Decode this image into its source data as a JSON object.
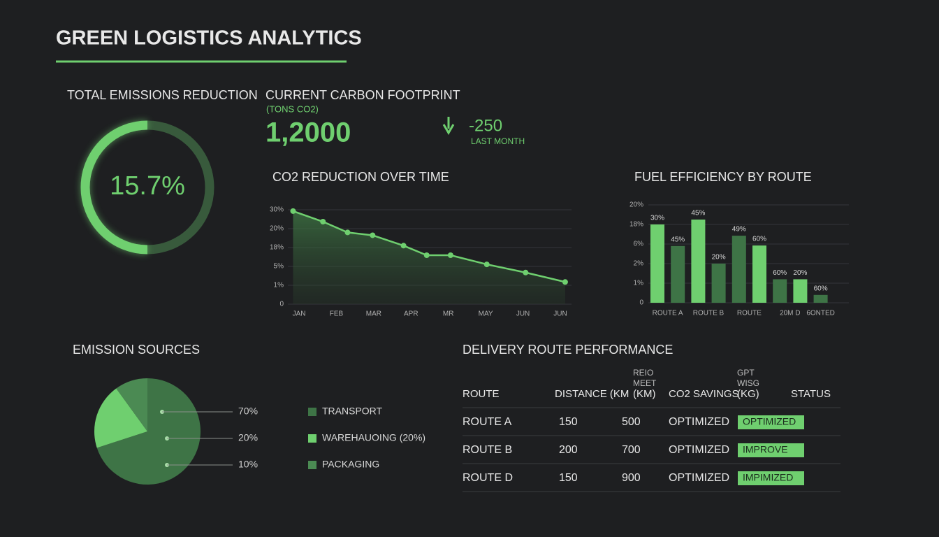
{
  "header": {
    "title": "GREEN LOGISTICS ANALYTICS"
  },
  "kpis": {
    "emissions_reduction": {
      "label": "TOTAL EMISSIONS REDUCTION",
      "value": "15.7%"
    },
    "carbon_footprint": {
      "label": "CURRENT CARBON FOOTPRINT",
      "unit": "(TONS CO2)",
      "value": "1,2000",
      "change": "-250",
      "change_label": "LAST MONTH"
    }
  },
  "chart_data": [
    {
      "type": "line",
      "title": "CO2 REDUCTION OVER TIME",
      "x": [
        -0.16,
        0.64,
        1.3,
        1.97,
        2.8,
        3.42,
        4.06,
        5.03,
        6.07,
        7.13
      ],
      "series": [
        {
          "color": "#6fcf6f",
          "values": [
            29.3,
            23.7,
            19.6,
            19.3,
            18.2,
            12.7,
            12.7,
            6.4,
            3.7,
            1.7
          ]
        }
      ],
      "xlim": [
        -0.3,
        7.3
      ],
      "xticks": [
        {
          "value": 0,
          "label": "JAN"
        },
        {
          "value": 1,
          "label": "FEB"
        },
        {
          "value": 2,
          "label": "MAR"
        },
        {
          "value": 3,
          "label": "APR"
        },
        {
          "value": 4,
          "label": "MR"
        },
        {
          "value": 5,
          "label": "MAY"
        },
        {
          "value": 6,
          "label": "JUN"
        },
        {
          "value": 7,
          "label": "JUN"
        }
      ],
      "ylim": [
        0,
        30
      ],
      "yticks": [
        0,
        {
          "value": 1,
          "label": "1%"
        },
        {
          "value": 5,
          "label": "5%"
        },
        {
          "value": 18,
          "label": "18%"
        },
        {
          "value": 20,
          "label": "20%"
        },
        {
          "value": 30,
          "label": "30%"
        }
      ],
      "grid": true
    },
    {
      "type": "bar",
      "title": "FUEL EFFICIENCY BY ROUTE",
      "values": [
        18,
        5.6,
        18.5,
        2,
        11.1,
        5.7,
        1.2,
        1.2,
        0.4
      ],
      "colors": [
        "#6fcf6f",
        "#3e7446",
        "#6fcf6f",
        "#3e7446",
        "#3e7446",
        "#6fcf6f",
        "#3e7446",
        "#6fcf6f",
        "#3e7446"
      ],
      "annotations": [
        "30%",
        "45%",
        "45%",
        "20%",
        "49%",
        "60%",
        "60%",
        "20%",
        "60%"
      ],
      "group_labels": [
        "ROUTE A",
        "ROUTE B",
        "ROUTE",
        "20M D",
        "6ONTED"
      ],
      "ylim": [
        0,
        20
      ],
      "yticks": [
        0,
        {
          "value": 1,
          "label": "1%"
        },
        {
          "value": 2,
          "label": "2%"
        },
        {
          "value": 6,
          "label": "6%"
        },
        {
          "value": 18,
          "label": "18%"
        },
        {
          "value": 20,
          "label": "20%"
        }
      ],
      "grid": true
    },
    {
      "type": "pie",
      "title": "EMISSION SOURCES",
      "categories": [
        "TRANSPORT",
        "WAREHAUOING (20%)",
        "PACKAGING"
      ],
      "values": [
        70,
        20,
        10
      ],
      "value_labels": [
        "70%",
        "20%",
        "10%"
      ],
      "colors": [
        "#3e7446",
        "#6fcf6f",
        "#4b8a53"
      ]
    }
  ],
  "table": {
    "title": "DELIVERY ROUTE PERFORMANCE",
    "columns": [
      [
        "ROUTE"
      ],
      [
        "DISTANCE (KM"
      ],
      [
        "REIO",
        "MEET",
        "(KM)"
      ],
      [
        "CO2 SAVINGS"
      ],
      [
        "GPT",
        "WISG",
        "(KG)"
      ],
      [
        "STATUS"
      ]
    ],
    "rows": [
      [
        "ROUTE A",
        "150",
        "500",
        "OPTIMIZED",
        "OPTIMIZED"
      ],
      [
        "ROUTE B",
        "200",
        "700",
        "OPTIMIZED",
        "IMPROVE"
      ],
      [
        "ROUTE D",
        "150",
        "900",
        "OPTIMIZED",
        "IMPIMIZED"
      ]
    ]
  }
}
